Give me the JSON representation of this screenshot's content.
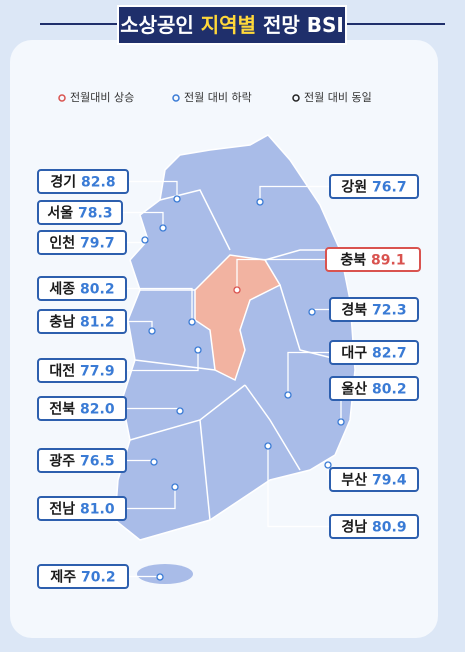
{
  "header": {
    "title_parts": [
      "소상공인",
      "지역별",
      "전망 BSI"
    ]
  },
  "legend": [
    {
      "label": "전월대비 상승",
      "color": "#d9534f"
    },
    {
      "label": "전월 대비 하락",
      "color": "#3a7bd5"
    },
    {
      "label": "전월 대비 동일",
      "color": "#222222"
    }
  ],
  "regions": [
    {
      "name": "경기",
      "value": "82.8",
      "color": "#3a7bd5"
    },
    {
      "name": "서울",
      "value": "78.3",
      "color": "#3a7bd5"
    },
    {
      "name": "인천",
      "value": "79.7",
      "color": "#3a7bd5"
    },
    {
      "name": "세종",
      "value": "80.2",
      "color": "#3a7bd5"
    },
    {
      "name": "충남",
      "value": "81.2",
      "color": "#3a7bd5"
    },
    {
      "name": "대전",
      "value": "77.9",
      "color": "#3a7bd5"
    },
    {
      "name": "전북",
      "value": "82.0",
      "color": "#3a7bd5"
    },
    {
      "name": "광주",
      "value": "76.5",
      "color": "#3a7bd5"
    },
    {
      "name": "전남",
      "value": "81.0",
      "color": "#3a7bd5"
    },
    {
      "name": "제주",
      "value": "70.2",
      "color": "#3a7bd5"
    },
    {
      "name": "강원",
      "value": "76.7",
      "color": "#3a7bd5"
    },
    {
      "name": "충북",
      "value": "89.1",
      "color": "#d9534f"
    },
    {
      "name": "경북",
      "value": "72.3",
      "color": "#3a7bd5"
    },
    {
      "name": "대구",
      "value": "82.7",
      "color": "#3a7bd5"
    },
    {
      "name": "울산",
      "value": "80.2",
      "color": "#3a7bd5"
    },
    {
      "name": "부산",
      "value": "79.4",
      "color": "#3a7bd5"
    },
    {
      "name": "경남",
      "value": "80.9",
      "color": "#3a7bd5"
    }
  ]
}
